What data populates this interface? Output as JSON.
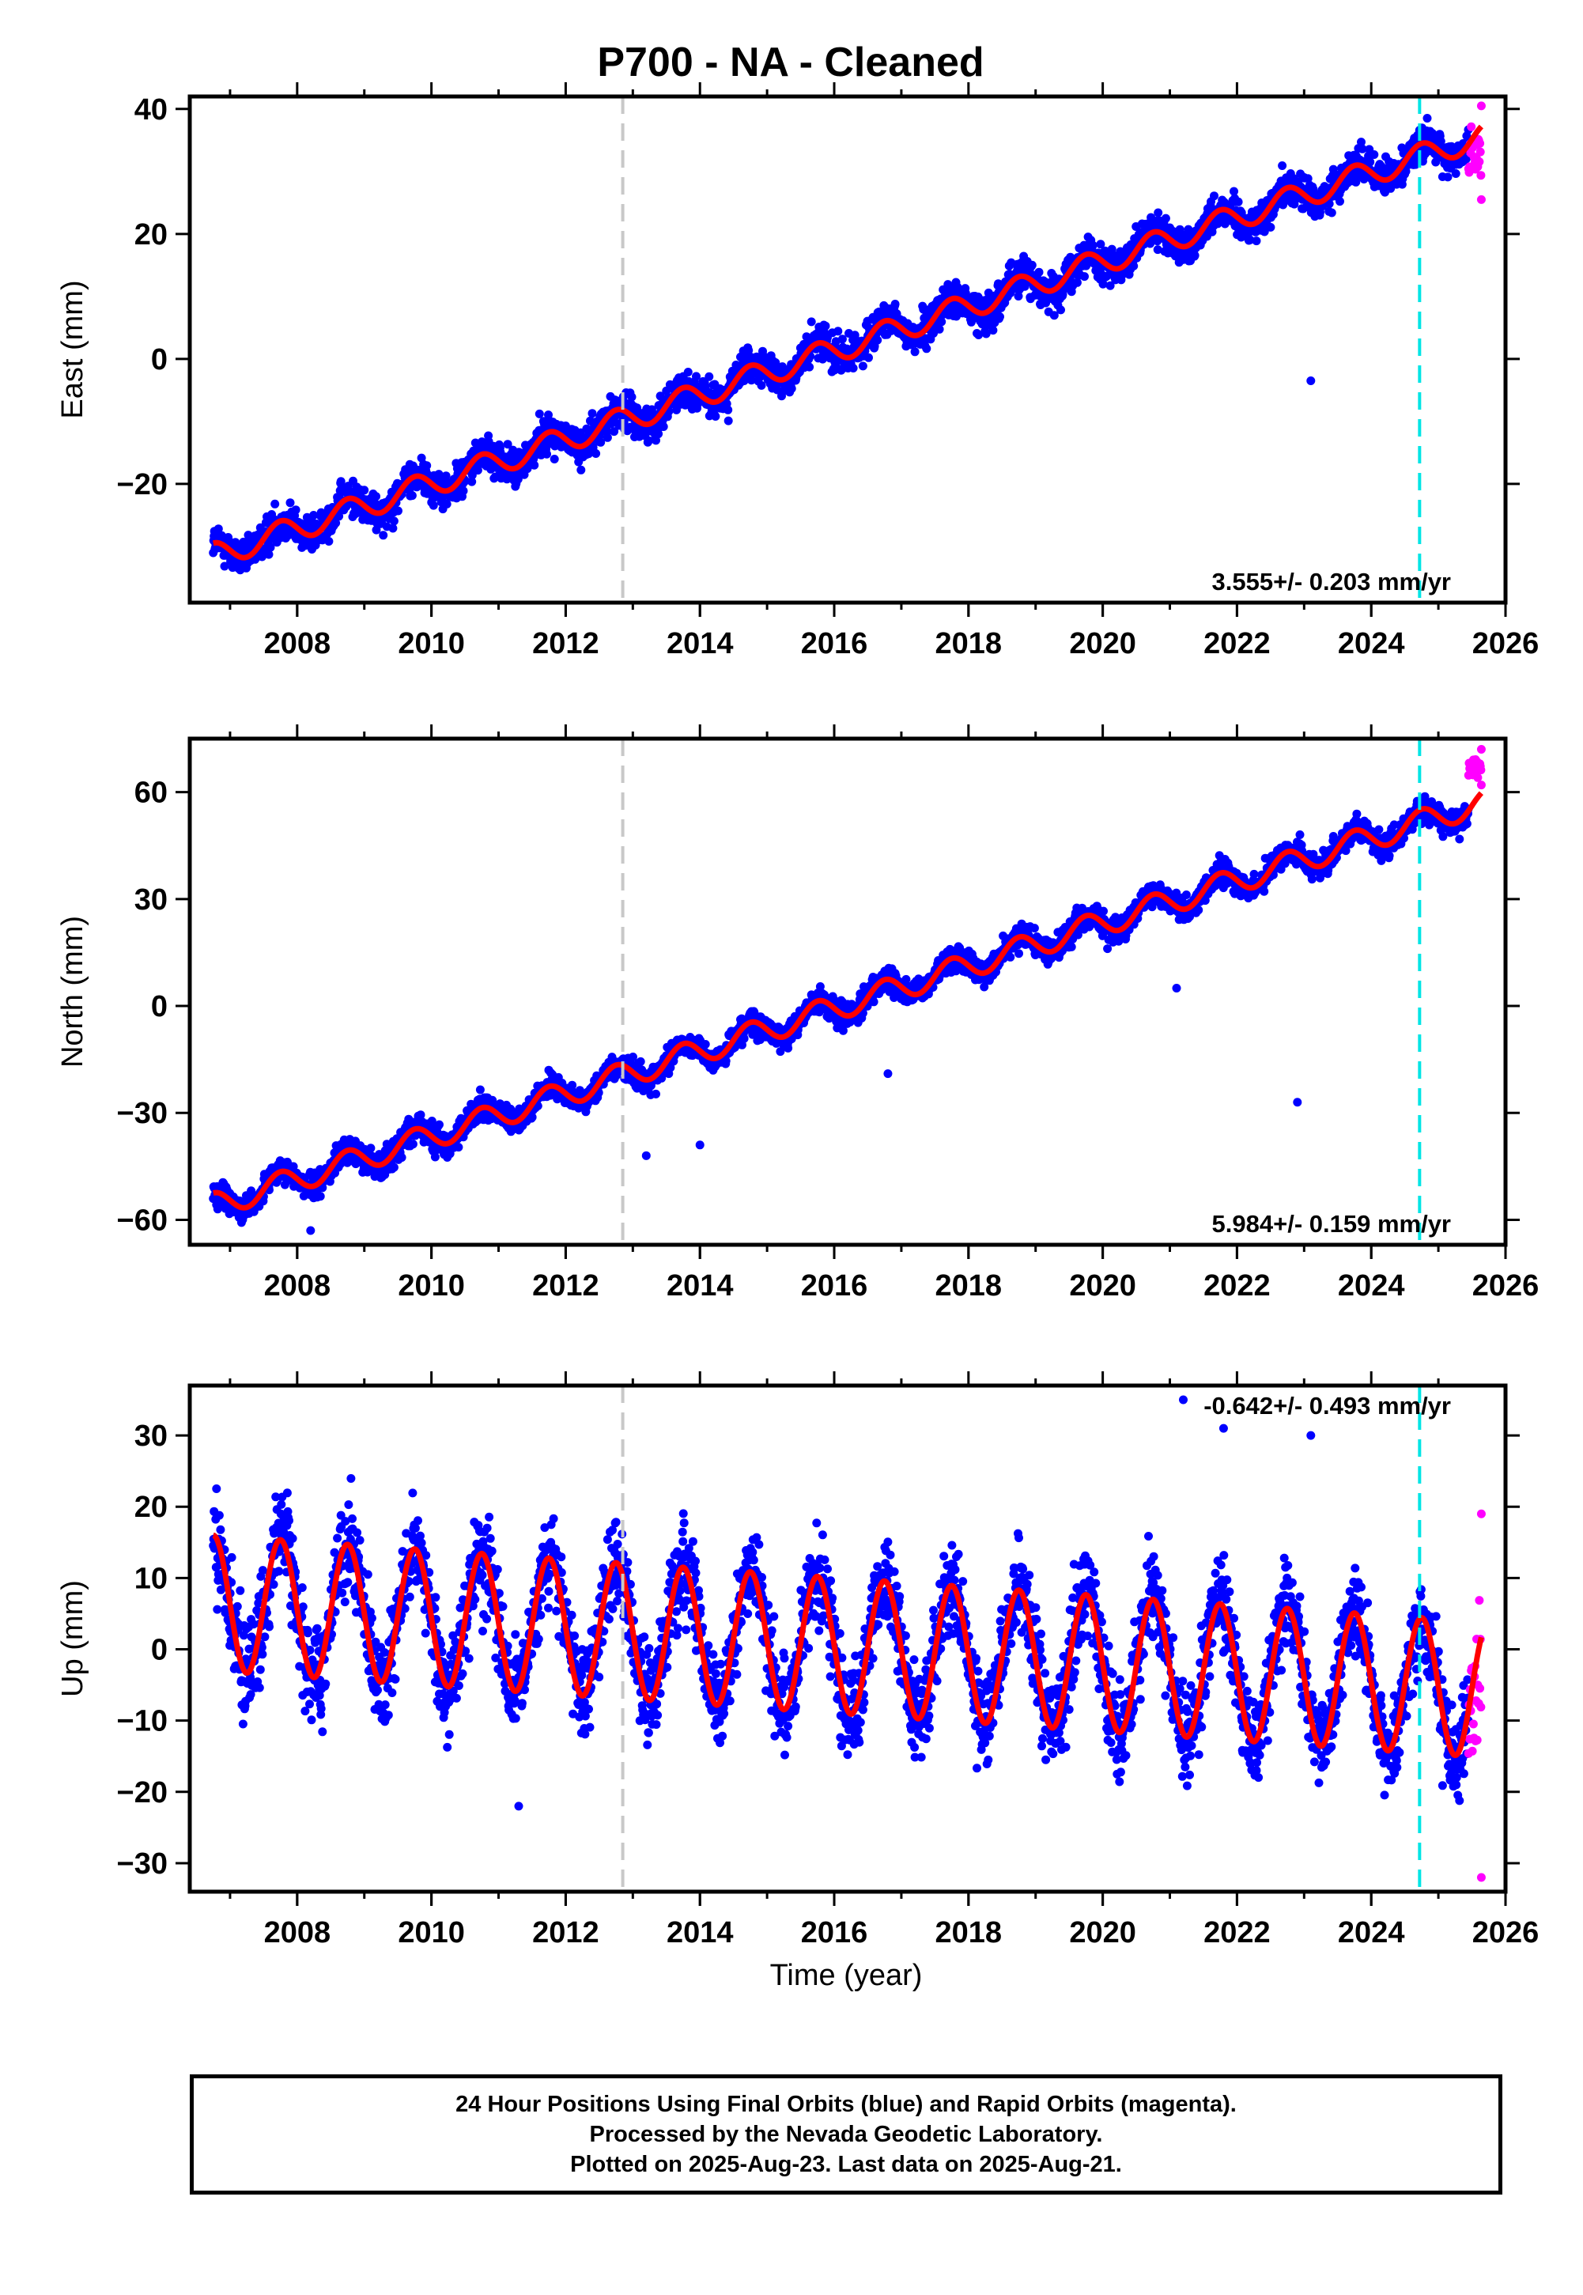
{
  "title": "P700  - NA - Cleaned",
  "xlabel": "Time (year)",
  "caption": {
    "line1": "24 Hour Positions Using Final Orbits (blue) and Rapid Orbits (magenta).",
    "line2": "Processed by the Nevada Geodetic Laboratory.",
    "line3": "Plotted on 2025-Aug-23. Last data on 2025-Aug-21."
  },
  "colors": {
    "final_orbits": "#0000ff",
    "rapid_orbits": "#ff00ff",
    "model_fit": "#ff0000",
    "grey_marker": "#c8c8c8",
    "cyan_marker": "#00e5e5"
  },
  "chart_data": [
    {
      "type": "scatter",
      "ylabel": "East (mm)",
      "xlim": [
        2006.4,
        2026.0
      ],
      "ylim": [
        -39,
        42
      ],
      "x_ticks": [
        2008,
        2010,
        2012,
        2014,
        2016,
        2018,
        2020,
        2022,
        2024,
        2026
      ],
      "y_ticks": [
        -20,
        0,
        20,
        40
      ],
      "tick_labels": [
        "2008",
        "2010",
        "2012",
        "2014",
        "2016",
        "2018",
        "2020",
        "2022",
        "2024",
        "2026"
      ],
      "y_tick_labels": [
        "−20",
        "0",
        "20",
        "40"
      ],
      "rate_label": "3.555+/- 0.203 mm/yr",
      "vertical_markers": [
        {
          "x": 2012.85,
          "style": "grey-dashed"
        },
        {
          "x": 2024.72,
          "style": "cyan-dashed"
        }
      ],
      "series": [
        {
          "name": "Final Orbits (blue)",
          "color": "#0000ff",
          "x_range": [
            2006.75,
            2025.45
          ],
          "trend": {
            "intercept_at_2006.75": -31.5,
            "rate_mm_yr": 3.555
          },
          "annual_amplitude": 2.0,
          "scatter": 2.0
        },
        {
          "name": "Rapid Orbits (magenta)",
          "color": "#ff00ff",
          "x_range": [
            2025.45,
            2025.64
          ],
          "y_range": [
            25.5,
            40.5
          ]
        },
        {
          "name": "model fit",
          "color": "#ff0000",
          "x_range": [
            2006.75,
            2025.64
          ]
        }
      ],
      "outliers": [
        {
          "x": 2023.1,
          "y": -3.5
        }
      ]
    },
    {
      "type": "scatter",
      "ylabel": "North (mm)",
      "xlim": [
        2006.4,
        2026.0
      ],
      "ylim": [
        -67,
        75
      ],
      "x_ticks": [
        2008,
        2010,
        2012,
        2014,
        2016,
        2018,
        2020,
        2022,
        2024,
        2026
      ],
      "y_ticks": [
        -60,
        -30,
        0,
        30,
        60
      ],
      "tick_labels": [
        "2008",
        "2010",
        "2012",
        "2014",
        "2016",
        "2018",
        "2020",
        "2022",
        "2024",
        "2026"
      ],
      "y_tick_labels": [
        "−60",
        "−30",
        "0",
        "30",
        "60"
      ],
      "rate_label": "5.984+/- 0.159 mm/yr",
      "vertical_markers": [
        {
          "x": 2012.85,
          "style": "grey-dashed"
        },
        {
          "x": 2024.72,
          "style": "cyan-dashed"
        }
      ],
      "series": [
        {
          "name": "Final Orbits (blue)",
          "color": "#0000ff",
          "x_range": [
            2006.75,
            2025.45
          ],
          "trend": {
            "intercept_at_2006.75": -56,
            "rate_mm_yr": 5.984
          },
          "annual_amplitude": 3.5,
          "scatter": 2.5
        },
        {
          "name": "Rapid Orbits (magenta)",
          "color": "#ff00ff",
          "x_range": [
            2025.45,
            2025.64
          ],
          "y_range": [
            62,
            72
          ]
        },
        {
          "name": "model fit",
          "color": "#ff0000",
          "x_range": [
            2006.75,
            2025.64
          ]
        }
      ],
      "outliers": [
        {
          "x": 2021.1,
          "y": 5
        },
        {
          "x": 2016.8,
          "y": -19
        },
        {
          "x": 2013.2,
          "y": -42
        },
        {
          "x": 2008.2,
          "y": -63
        },
        {
          "x": 2022.9,
          "y": -27
        },
        {
          "x": 2014.0,
          "y": -39
        }
      ]
    },
    {
      "type": "scatter",
      "ylabel": "Up (mm)",
      "xlim": [
        2006.4,
        2026.0
      ],
      "ylim": [
        -34,
        37
      ],
      "x_ticks": [
        2008,
        2010,
        2012,
        2014,
        2016,
        2018,
        2020,
        2022,
        2024,
        2026
      ],
      "y_ticks": [
        -30,
        -20,
        -10,
        0,
        10,
        20,
        30
      ],
      "tick_labels": [
        "2008",
        "2010",
        "2012",
        "2014",
        "2016",
        "2018",
        "2020",
        "2022",
        "2024",
        "2026"
      ],
      "y_tick_labels": [
        "−30",
        "−20",
        "−10",
        "0",
        "10",
        "20",
        "30"
      ],
      "rate_label": "-0.642+/- 0.493 mm/yr",
      "vertical_markers": [
        {
          "x": 2012.85,
          "style": "grey-dashed"
        },
        {
          "x": 2024.72,
          "style": "cyan-dashed"
        }
      ],
      "series": [
        {
          "name": "Final Orbits (blue)",
          "color": "#0000ff",
          "x_range": [
            2006.75,
            2025.45
          ],
          "trend": {
            "intercept_at_2006.75": 6.5,
            "rate_mm_yr": -0.642
          },
          "annual_amplitude": 9.5,
          "scatter": 4.5
        },
        {
          "name": "Rapid Orbits (magenta)",
          "color": "#ff00ff",
          "x_range": [
            2025.45,
            2025.64
          ],
          "y_range": [
            -32,
            19
          ]
        },
        {
          "name": "model fit",
          "color": "#ff0000",
          "x_range": [
            2006.75,
            2025.64
          ]
        }
      ],
      "outliers": [
        {
          "x": 2021.2,
          "y": 35
        },
        {
          "x": 2021.8,
          "y": 31
        },
        {
          "x": 2023.1,
          "y": 30
        },
        {
          "x": 2011.3,
          "y": -22
        }
      ]
    }
  ]
}
